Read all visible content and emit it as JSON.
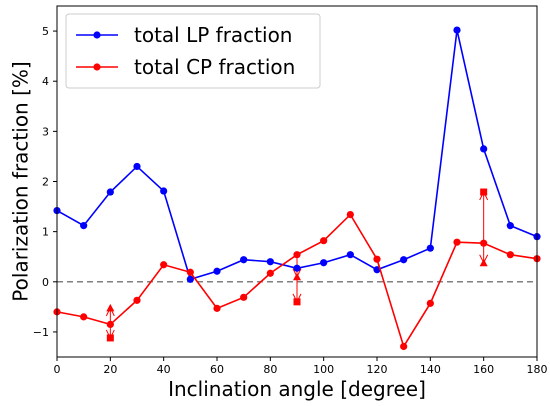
{
  "chart_data": {
    "type": "line",
    "title": "",
    "xlabel": "Inclination angle [degree]",
    "ylabel": "Polarization fraction [%]",
    "xlim": [
      0,
      180
    ],
    "ylim": [
      -1.5,
      5.5
    ],
    "xticks": [
      0,
      20,
      40,
      60,
      80,
      100,
      120,
      140,
      160,
      180
    ],
    "yticks": [
      -1,
      0,
      1,
      2,
      3,
      4,
      5
    ],
    "grid": false,
    "legend_position": "top-left",
    "reference_line": {
      "y": 0,
      "style": "dashed",
      "color": "#808080"
    },
    "series": [
      {
        "name": "total LP fraction",
        "color": "#0000ff",
        "x": [
          0,
          10,
          20,
          30,
          40,
          50,
          60,
          70,
          80,
          90,
          100,
          110,
          120,
          130,
          140,
          150,
          160,
          170,
          180
        ],
        "y": [
          1.42,
          1.12,
          1.79,
          2.3,
          1.81,
          0.05,
          0.21,
          0.44,
          0.4,
          0.27,
          0.38,
          0.54,
          0.24,
          0.44,
          0.67,
          5.02,
          2.65,
          1.12,
          0.9
        ]
      },
      {
        "name": "total CP fraction",
        "color": "#ff0000",
        "x": [
          0,
          10,
          20,
          30,
          40,
          50,
          60,
          70,
          80,
          90,
          100,
          110,
          120,
          130,
          140,
          150,
          160,
          170,
          180
        ],
        "y": [
          -0.6,
          -0.7,
          -0.85,
          -0.37,
          0.34,
          0.19,
          -0.53,
          -0.31,
          0.17,
          0.54,
          0.82,
          1.34,
          0.45,
          -1.29,
          -0.43,
          0.79,
          0.77,
          0.54,
          0.46
        ]
      }
    ],
    "annotations": [
      {
        "x": 20,
        "from": -0.85,
        "upper": -0.52,
        "lower": -1.12,
        "color": "#ff0000"
      },
      {
        "x": 90,
        "from": 0.54,
        "upper": 0.1,
        "lower": -0.4,
        "color": "#ff0000"
      },
      {
        "x": 160,
        "from": 0.77,
        "upper": 1.79,
        "lower": 0.38,
        "color": "#ff0000"
      }
    ]
  }
}
